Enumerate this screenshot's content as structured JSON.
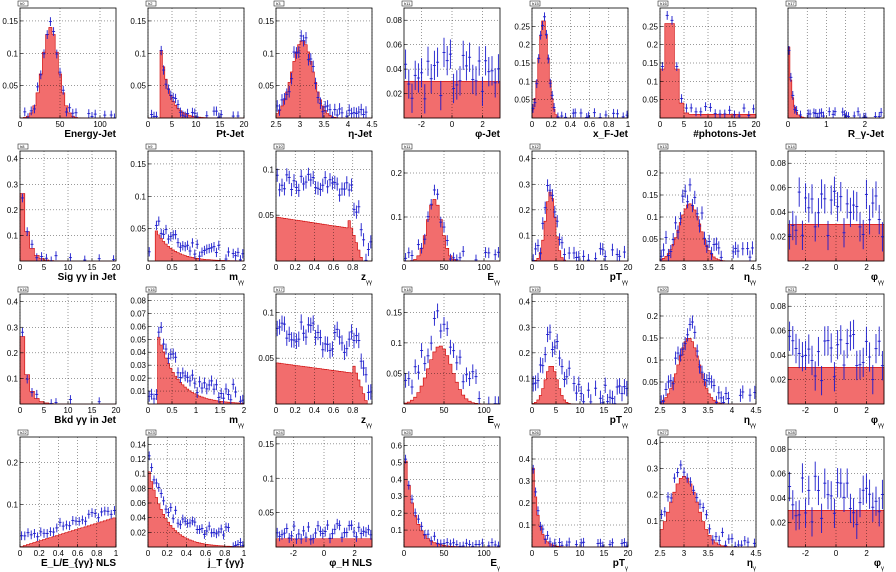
{
  "colors": {
    "fill": "#f26d6d",
    "outline": "#cc0000",
    "points": "#1a1acc",
    "grid": "#000000"
  },
  "chart_data": [
    {
      "type": "histogram",
      "tag": "h0",
      "xlabel": "Energy-Jet",
      "xlim": [
        0,
        120
      ],
      "ylim": [
        0,
        0.17
      ],
      "xticks": [
        0,
        50,
        100
      ],
      "yticks": [
        0.05,
        0.1,
        0.15
      ],
      "ytick_labels": [
        "0.05",
        "0.1",
        "0.15"
      ],
      "bins": 30,
      "peaks": [
        {
          "mu": 38,
          "sigma": 10,
          "amp": 0.14
        }
      ],
      "points_shift": 0,
      "scatter": 0.01
    },
    {
      "type": "histogram",
      "tag": "h2",
      "xlabel": "Pt-Jet",
      "xlim": [
        0,
        20
      ],
      "ylim": [
        0,
        0.17
      ],
      "xticks": [
        0,
        5,
        10,
        15,
        20
      ],
      "yticks": [
        0.05,
        0.1,
        0.15
      ],
      "ytick_labels": [
        "0.05",
        "0.1",
        "0.15"
      ],
      "bins": 40,
      "decay": {
        "start": 2.5,
        "amp": 0.12,
        "tau": 1.8
      },
      "points_shift": 0,
      "scatter": 0.012
    },
    {
      "type": "histogram",
      "tag": "h3",
      "xlabel": "η-Jet",
      "xlim": [
        2.5,
        4.5
      ],
      "ylim": [
        0,
        0.17
      ],
      "xticks": [
        2.5,
        3,
        3.5,
        4,
        4.5
      ],
      "yticks": [
        0.05,
        0.1,
        0.15
      ],
      "ytick_labels": [
        "0.05",
        "0.1",
        "0.15"
      ],
      "bins": 40,
      "peaks": [
        {
          "mu": 3.05,
          "sigma": 0.22,
          "amp": 0.12
        }
      ],
      "points_shift": 0,
      "scatter": 0.015
    },
    {
      "type": "histogram",
      "tag": "h11",
      "xlabel": "φ-Jet",
      "xlim": [
        -3.14,
        3.14
      ],
      "ylim": [
        0,
        0.09
      ],
      "xticks": [
        -2,
        0,
        2
      ],
      "yticks": [
        0.02,
        0.04,
        0.06,
        0.08
      ],
      "ytick_labels": [
        "0.02",
        "0.04",
        "0.06",
        "0.08"
      ],
      "bins": 30,
      "flat": 0.03,
      "points_shift": 0.005,
      "scatter": 0.02
    },
    {
      "type": "histogram",
      "tag": "h15",
      "xlabel": "x_F-Jet",
      "xlim": [
        0,
        1
      ],
      "ylim": [
        0,
        0.3
      ],
      "xticks": [
        0,
        0.2,
        0.4,
        0.6,
        0.8,
        1
      ],
      "xtick_labels": [
        "0",
        "0.2",
        "0.4",
        "0.6",
        "0.8",
        "1"
      ],
      "yticks": [
        0.05,
        0.1,
        0.15,
        0.2,
        0.25
      ],
      "ytick_labels": [
        "0.05",
        "0.1",
        "0.15",
        "0.2",
        "0.25"
      ],
      "bins": 50,
      "peaks": [
        {
          "mu": 0.12,
          "sigma": 0.05,
          "amp": 0.27
        }
      ],
      "points_shift": 0,
      "scatter": 0.015
    },
    {
      "type": "histogram",
      "tag": "h16",
      "xlabel": "#photons-Jet",
      "xlim": [
        0,
        20
      ],
      "ylim": [
        0,
        0.3
      ],
      "xticks": [
        0,
        5,
        10,
        15,
        20
      ],
      "yticks": [
        0.05,
        0.1,
        0.15,
        0.2,
        0.25
      ],
      "ytick_labels": [
        "0.05",
        "0.1",
        "0.15",
        "0.2",
        "0.25"
      ],
      "bins": 20,
      "peaks": [
        {
          "mu": 2,
          "sigma": 1.2,
          "amp": 0.27
        }
      ],
      "tail": 0.02,
      "points_shift": 0.01,
      "scatter": 0.015
    },
    {
      "type": "histogram",
      "tag": "h17",
      "xlabel": "R_γ-Jet",
      "xlim": [
        0,
        2.5
      ],
      "ylim": [
        0,
        0.17
      ],
      "xticks": [
        0,
        0.5,
        1,
        1.5,
        2,
        2.5
      ],
      "xtick_labels": [
        "0",
        "",
        "1",
        "",
        "2",
        ""
      ],
      "yticks": [],
      "ytick_labels": [],
      "bins": 50,
      "decay": {
        "start": 0,
        "amp": 0.15,
        "tau": 0.08
      },
      "points_shift": 0,
      "scatter": 0.01
    },
    {
      "type": "histogram",
      "tag": "h8",
      "xlabel": "Sig γγ in Jet",
      "xlim": [
        0,
        20
      ],
      "ylim": [
        0,
        0.43
      ],
      "xticks": [
        0,
        5,
        10,
        15,
        20
      ],
      "yticks": [
        0.1,
        0.2,
        0.3,
        0.4
      ],
      "ytick_labels": [
        "0.1",
        "0.2",
        "0.3",
        "0.4"
      ],
      "bins": 20,
      "decay": {
        "start": 0,
        "amp": 0.4,
        "tau": 1.2
      },
      "points_shift": 0,
      "scatter": 0.02
    },
    {
      "type": "histogram",
      "tag": "h9",
      "xlabel": "m",
      "sub": "γγ",
      "xlim": [
        0,
        2
      ],
      "ylim": [
        0,
        0.17
      ],
      "xticks": [
        0,
        0.5,
        1,
        1.5,
        2
      ],
      "yticks": [
        0.05,
        0.1,
        0.15
      ],
      "ytick_labels": [
        "0.05",
        "0.1",
        "0.15"
      ],
      "bins": 40,
      "decay": {
        "start": 0.15,
        "amp": 0.05,
        "tau": 0.35
      },
      "points_shift": 0.015,
      "scatter": 0.012
    },
    {
      "type": "histogram",
      "tag": "h10",
      "xlabel": "z",
      "sub": "γγ",
      "xlim": [
        0,
        1
      ],
      "ylim": [
        0,
        0.12
      ],
      "xticks": [
        0,
        0.2,
        0.4,
        0.6,
        0.8,
        1
      ],
      "xtick_labels": [
        "0",
        "0.2",
        "0.4",
        "0.6",
        "0.8",
        ""
      ],
      "yticks": [
        0.05,
        0.1
      ],
      "ytick_labels": [
        "0.05",
        "0.1"
      ],
      "bins": 40,
      "plateau": {
        "level": 0.048,
        "end": 0.75
      },
      "points_shift": 0.04,
      "scatter": 0.012
    },
    {
      "type": "histogram",
      "tag": "h11",
      "xlabel": "E",
      "sub": "γγ",
      "xlim": [
        0,
        120
      ],
      "ylim": [
        0,
        0.25
      ],
      "xticks": [
        0,
        50,
        100
      ],
      "yticks": [
        0.1,
        0.2
      ],
      "ytick_labels": [
        "0.1",
        "0.2"
      ],
      "bins": 30,
      "peaks": [
        {
          "mu": 38,
          "sigma": 9,
          "amp": 0.14
        }
      ],
      "points_shift": 0.01,
      "scatter": 0.02
    },
    {
      "type": "histogram",
      "tag": "h12",
      "xlabel": "pT",
      "sub": "γγ",
      "xlim": [
        0,
        20
      ],
      "ylim": [
        0,
        0.43
      ],
      "xticks": [
        0,
        5,
        10,
        15,
        20
      ],
      "yticks": [
        0.1,
        0.2,
        0.3,
        0.4
      ],
      "ytick_labels": [
        "0.1",
        "0.2",
        "0.3",
        "0.4"
      ],
      "bins": 40,
      "peaks": [
        {
          "mu": 3.8,
          "sigma": 1.0,
          "amp": 0.27
        }
      ],
      "points_shift": 0.03,
      "scatter": 0.04
    },
    {
      "type": "histogram",
      "tag": "h13",
      "xlabel": "η",
      "sub": "γγ",
      "xlim": [
        2.5,
        4.5
      ],
      "ylim": [
        0,
        0.25
      ],
      "xticks": [
        2.5,
        3,
        3.5,
        4,
        4.5
      ],
      "yticks": [
        0.05,
        0.1,
        0.15,
        0.2
      ],
      "ytick_labels": [
        "0.05",
        "0.1",
        "0.15",
        "0.2"
      ],
      "bins": 40,
      "peaks": [
        {
          "mu": 3.12,
          "sigma": 0.22,
          "amp": 0.13
        }
      ],
      "points_shift": 0.02,
      "scatter": 0.025
    },
    {
      "type": "histogram",
      "tag": "h14",
      "xlabel": "φ",
      "sub": "γγ",
      "xlim": [
        -3.14,
        3.14
      ],
      "ylim": [
        0,
        0.09
      ],
      "xticks": [
        -2,
        0,
        2
      ],
      "yticks": [
        0.02,
        0.04,
        0.06,
        0.08
      ],
      "ytick_labels": [
        "0.02",
        "0.04",
        "0.06",
        "0.08"
      ],
      "bins": 30,
      "flat": 0.03,
      "points_shift": 0.008,
      "scatter": 0.02
    },
    {
      "type": "histogram",
      "tag": "h16",
      "xlabel": "Bkd γγ in Jet",
      "xlim": [
        0,
        20
      ],
      "ylim": [
        0,
        0.43
      ],
      "xticks": [
        0,
        5,
        10,
        15,
        20
      ],
      "yticks": [
        0.1,
        0.2,
        0.3,
        0.4
      ],
      "ytick_labels": [
        "0.1",
        "0.2",
        "0.3",
        "0.4"
      ],
      "bins": 20,
      "decay": {
        "start": 0,
        "amp": 0.4,
        "tau": 1.2
      },
      "points_shift": 0,
      "scatter": 0.02
    },
    {
      "type": "histogram",
      "tag": "h16",
      "xlabel": "m",
      "sub": "γγ",
      "xlim": [
        0,
        2
      ],
      "ylim": [
        0,
        0.085
      ],
      "xticks": [
        0,
        0.5,
        1,
        1.5,
        2
      ],
      "yticks": [
        0.01,
        0.02,
        0.03,
        0.04,
        0.05,
        0.06,
        0.07,
        0.08
      ],
      "ytick_labels": [
        "0.01",
        "0.02",
        "0.03",
        "0.04",
        "0.05",
        "0.06",
        "0.07",
        "0.08"
      ],
      "bins": 40,
      "decay": {
        "start": 0.2,
        "amp": 0.055,
        "tau": 0.4
      },
      "points_shift": 0.008,
      "scatter": 0.007
    },
    {
      "type": "histogram",
      "tag": "h17",
      "xlabel": "z",
      "sub": "γγ",
      "xlim": [
        0,
        1
      ],
      "ylim": [
        0,
        0.12
      ],
      "xticks": [
        0,
        0.2,
        0.4,
        0.6,
        0.8,
        1
      ],
      "xtick_labels": [
        "0",
        "0.2",
        "0.4",
        "0.6",
        "0.8",
        ""
      ],
      "yticks": [
        0.05,
        0.1
      ],
      "ytick_labels": [
        "0.05",
        "0.1"
      ],
      "bins": 40,
      "plateau": {
        "level": 0.045,
        "end": 0.8
      },
      "points_shift": 0.035,
      "scatter": 0.014
    },
    {
      "type": "histogram",
      "tag": "h18",
      "xlabel": "E",
      "sub": "γγ",
      "xlim": [
        0,
        120
      ],
      "ylim": [
        0,
        0.18
      ],
      "xticks": [
        0,
        50,
        100
      ],
      "yticks": [
        0.05,
        0.1,
        0.15
      ],
      "ytick_labels": [
        "0.05",
        "0.1",
        "0.15"
      ],
      "bins": 30,
      "peaks": [
        {
          "mu": 45,
          "sigma": 15,
          "amp": 0.095
        }
      ],
      "points_shift": 0.04,
      "scatter": 0.02
    },
    {
      "type": "histogram",
      "tag": "h19",
      "xlabel": "pT",
      "sub": "γγ",
      "xlim": [
        0,
        20
      ],
      "ylim": [
        0,
        0.43
      ],
      "xticks": [
        0,
        5,
        10,
        15,
        20
      ],
      "yticks": [
        0.1,
        0.2,
        0.3,
        0.4
      ],
      "ytick_labels": [
        "0.1",
        "0.2",
        "0.3",
        "0.4"
      ],
      "bins": 40,
      "peaks": [
        {
          "mu": 4,
          "sigma": 1.3,
          "amp": 0.15
        }
      ],
      "points_shift": 0.1,
      "scatter": 0.05
    },
    {
      "type": "histogram",
      "tag": "h20",
      "xlabel": "η",
      "sub": "γγ",
      "xlim": [
        2.5,
        4.5
      ],
      "ylim": [
        0,
        0.25
      ],
      "xticks": [
        2.5,
        3,
        3.5,
        4,
        4.5
      ],
      "yticks": [
        0.05,
        0.1,
        0.15,
        0.2
      ],
      "ytick_labels": [
        "0.05",
        "0.1",
        "0.15",
        "0.2"
      ],
      "bins": 40,
      "peaks": [
        {
          "mu": 3.1,
          "sigma": 0.22,
          "amp": 0.15
        }
      ],
      "points_shift": 0.02,
      "scatter": 0.025
    },
    {
      "type": "histogram",
      "tag": "h21",
      "xlabel": "φ",
      "sub": "γγ",
      "xlim": [
        -3.14,
        3.14
      ],
      "ylim": [
        0,
        0.09
      ],
      "xticks": [
        -2,
        0,
        2
      ],
      "yticks": [
        0.02,
        0.04,
        0.06,
        0.08
      ],
      "ytick_labels": [
        "0.02",
        "0.04",
        "0.06",
        "0.08"
      ],
      "bins": 30,
      "flat": 0.03,
      "points_shift": 0.008,
      "scatter": 0.02
    },
    {
      "type": "histogram",
      "tag": "h22",
      "xlabel": "E_L/E_{γγ} NLS",
      "xlim": [
        0,
        1
      ],
      "ylim": [
        0,
        0.26
      ],
      "xticks": [
        0,
        0.2,
        0.4,
        0.6,
        0.8,
        1
      ],
      "xtick_labels": [
        "0",
        "0.2",
        "0.4",
        "0.6",
        "0.8",
        "1"
      ],
      "yticks": [
        0.1,
        0.2
      ],
      "ytick_labels": [
        "0.1",
        "0.2"
      ],
      "bins": 30,
      "ramp": {
        "from": 0.0,
        "to": 0.07
      },
      "points_shift": 0.02,
      "scatter": 0.01
    },
    {
      "type": "histogram",
      "tag": "h23",
      "xlabel": "j_T {γγ}",
      "xlim": [
        0,
        1
      ],
      "ylim": [
        0,
        0.15
      ],
      "xticks": [
        0,
        0.2,
        0.4,
        0.6,
        0.8,
        1
      ],
      "xtick_labels": [
        "0",
        "0.2",
        "0.4",
        "0.6",
        "0.8",
        "1"
      ],
      "yticks": [
        0.02,
        0.04,
        0.06,
        0.08,
        0.1,
        0.12,
        0.14
      ],
      "ytick_labels": [
        "0.02",
        "0.04",
        "0.06",
        "0.08",
        "0.1",
        "0.12",
        "0.14"
      ],
      "bins": 40,
      "decay": {
        "start": 0,
        "amp": 0.11,
        "tau": 0.18
      },
      "points_shift": 0.02,
      "scatter": 0.008
    },
    {
      "type": "histogram",
      "tag": "h24",
      "xlabel": "φ_H NLS",
      "xlim": [
        -3.14,
        3.14
      ],
      "ylim": [
        0,
        0.16
      ],
      "xticks": [
        -2,
        0,
        2
      ],
      "yticks": [
        0.05,
        0.1,
        0.15
      ],
      "ytick_labels": [
        "0.05",
        "0.1",
        "0.15"
      ],
      "bins": 40,
      "flat": 0.012,
      "spike": {
        "x": 0,
        "amp": 0.09
      },
      "points_shift": 0.01,
      "scatter": 0.012
    },
    {
      "type": "histogram",
      "tag": "h25",
      "xlabel": "E",
      "sub": "γ",
      "xlim": [
        0,
        120
      ],
      "ylim": [
        0,
        0.65
      ],
      "xticks": [
        0,
        50,
        100
      ],
      "yticks": [
        0.1,
        0.2,
        0.3,
        0.4,
        0.5,
        0.6
      ],
      "ytick_labels": [
        "0.1",
        "0.2",
        "0.3",
        "0.4",
        "0.5",
        "0.6"
      ],
      "bins": 30,
      "decay": {
        "start": 0,
        "amp": 0.6,
        "tau": 12
      },
      "points_shift": 0.02,
      "scatter": 0.02
    },
    {
      "type": "histogram",
      "tag": "h26",
      "xlabel": "pT",
      "sub": "γ",
      "xlim": [
        0,
        20
      ],
      "ylim": [
        0,
        0.5
      ],
      "xticks": [
        0,
        5,
        10,
        15,
        20
      ],
      "yticks": [
        0.1,
        0.2,
        0.3,
        0.4
      ],
      "ytick_labels": [
        "0.1",
        "0.2",
        "0.3",
        "0.4"
      ],
      "bins": 40,
      "decay": {
        "start": 0,
        "amp": 0.45,
        "tau": 1.1
      },
      "points_shift": 0.01,
      "scatter": 0.02
    },
    {
      "type": "histogram",
      "tag": "h27",
      "xlabel": "η",
      "sub": "γ",
      "xlim": [
        2.5,
        4.5
      ],
      "ylim": [
        0,
        0.42
      ],
      "xticks": [
        2.5,
        3,
        3.5,
        4,
        4.5
      ],
      "yticks": [
        0.1,
        0.2,
        0.3,
        0.4
      ],
      "ytick_labels": [
        "0.1",
        "0.2",
        "0.3",
        "0.4"
      ],
      "bins": 30,
      "peaks": [
        {
          "mu": 3.0,
          "sigma": 0.28,
          "amp": 0.27
        }
      ],
      "points_shift": 0.03,
      "scatter": 0.03
    },
    {
      "type": "histogram",
      "tag": "h28",
      "xlabel": "φ",
      "sub": "γ",
      "xlim": [
        -3.14,
        3.14
      ],
      "ylim": [
        0,
        0.09
      ],
      "xticks": [
        -2,
        0,
        2
      ],
      "yticks": [
        0.02,
        0.04,
        0.06,
        0.08
      ],
      "ytick_labels": [
        "0.02",
        "0.04",
        "0.06",
        "0.08"
      ],
      "bins": 30,
      "flat": 0.03,
      "points_shift": 0.008,
      "scatter": 0.02
    }
  ]
}
